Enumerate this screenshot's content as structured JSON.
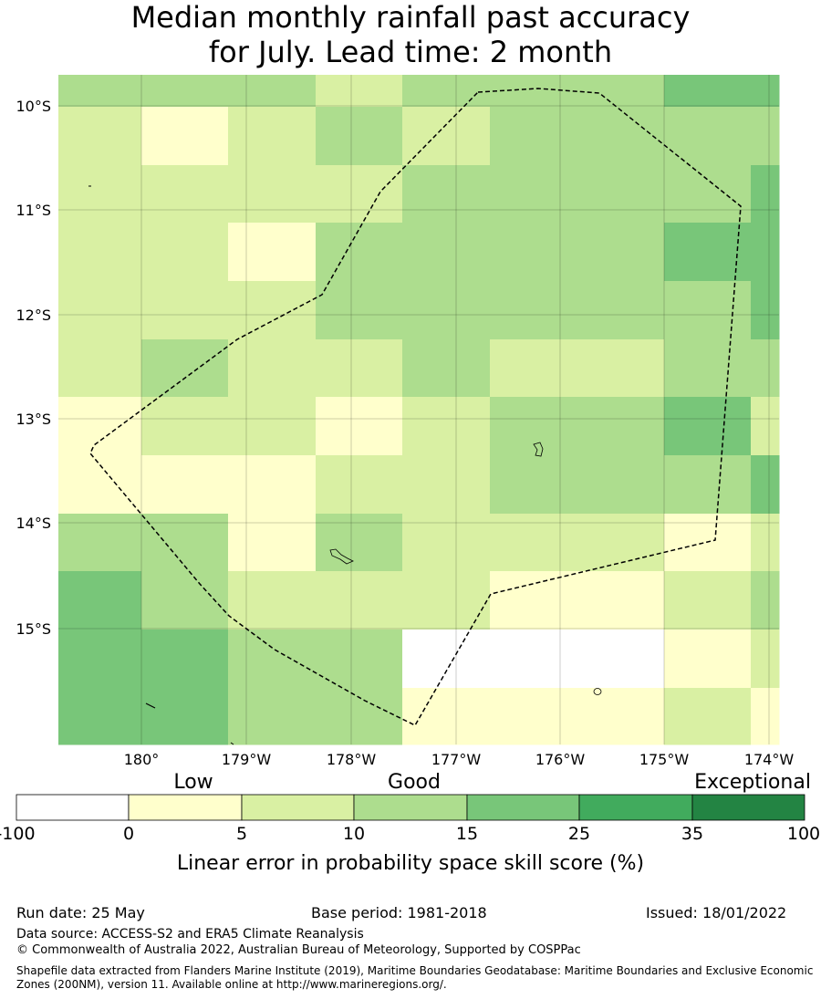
{
  "title": {
    "line1": "Median monthly rainfall past accuracy",
    "line2": "for July. Lead time: 2 month"
  },
  "map": {
    "lat_labels": [
      "10°S",
      "11°S",
      "12°S",
      "13°S",
      "14°S",
      "15°S"
    ],
    "lon_labels": [
      "180°",
      "179°W",
      "178°W",
      "177°W",
      "176°W",
      "175°W",
      "174°W"
    ],
    "boundary_style": "dashed",
    "grid": "on",
    "categories": [
      {
        "id": "nodata",
        "range": "-100 to 0",
        "color": "#ffffff"
      },
      {
        "id": "c0_5",
        "range": "0 to 5",
        "color": "#ffffcc"
      },
      {
        "id": "c5_10",
        "range": "5 to 10",
        "color": "#d9f0a3"
      },
      {
        "id": "c10_15",
        "range": "10 to 15",
        "color": "#addd8e"
      },
      {
        "id": "c15_25",
        "range": "15 to 25",
        "color": "#78c679"
      },
      {
        "id": "c25_35",
        "range": "25 to 35",
        "color": "#41ab5d"
      },
      {
        "id": "c35_100",
        "range": "35 to 100",
        "color": "#238443"
      }
    ],
    "grid_cells": [
      [
        3,
        3,
        3,
        2,
        3,
        3,
        4
      ],
      [
        2,
        1,
        2,
        3,
        2,
        3,
        3
      ],
      [
        2,
        2,
        2,
        2,
        3,
        3,
        3
      ],
      [
        2,
        2,
        1,
        3,
        3,
        3,
        4
      ],
      [
        2,
        2,
        2,
        3,
        3,
        3,
        3
      ],
      [
        2,
        3,
        2,
        2,
        3,
        2,
        3
      ],
      [
        1,
        2,
        2,
        1,
        2,
        3,
        4
      ],
      [
        1,
        1,
        1,
        2,
        2,
        3,
        3
      ],
      [
        3,
        3,
        1,
        3,
        2,
        2,
        1
      ],
      [
        4,
        3,
        2,
        2,
        2,
        1,
        2
      ],
      [
        4,
        4,
        3,
        3,
        0,
        0,
        1
      ],
      [
        4,
        4,
        3,
        3,
        1,
        1,
        2
      ]
    ]
  },
  "colorbar": {
    "tick_labels": [
      "-100",
      "0",
      "5",
      "10",
      "15",
      "25",
      "35",
      "100"
    ],
    "category_labels": {
      "low": "Low",
      "good": "Good",
      "exceptional": "Exceptional"
    },
    "title": "Linear error in probability space skill score (%)"
  },
  "footer": {
    "run_date": "Run date: 25 May",
    "base_period": "Base period: 1981-2018",
    "issued": "Issued: 18/01/2022",
    "data_source": "Data source: ACCESS-S2 and ERA5 Climate Reanalysis",
    "copyright": "© Commonwealth of Australia 2022, Australian Bureau of Meteorology, Supported by COSPPac",
    "shapefile": "Shapefile data extracted from Flanders Marine Institute (2019), Maritime Boundaries Geodatabase: Maritime Boundaries and Exclusive Economic Zones (200NM), version 11. Available online at http://www.marineregions.org/."
  }
}
